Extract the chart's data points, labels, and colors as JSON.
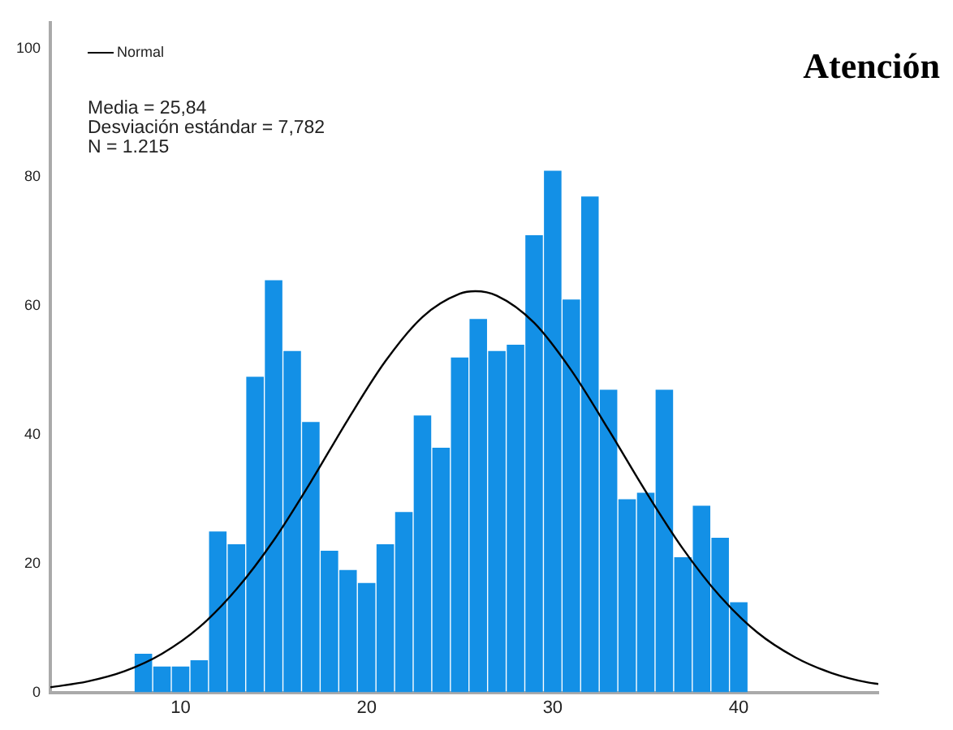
{
  "chart_data": {
    "type": "histogram",
    "title": "Atención",
    "annotations": [
      "Media = 25,84",
      "Desviación estándar = 7,782",
      "N = 1.215"
    ],
    "bins": [
      7.5,
      8.5,
      9.5,
      10.5,
      11.5,
      12.5,
      13.5,
      14.5,
      15.5,
      16.5,
      17.5,
      18.5,
      19.5,
      20.5,
      21.5,
      22.5,
      23.5,
      24.5,
      25.5,
      26.5,
      27.5,
      28.5,
      29.5,
      30.5,
      31.5,
      32.5,
      33.5,
      34.5,
      35.5,
      36.5,
      37.5,
      38.5,
      39.5,
      40.5
    ],
    "values": [
      6,
      4,
      4,
      5,
      25,
      23,
      49,
      64,
      53,
      42,
      22,
      19,
      17,
      23,
      28,
      43,
      38,
      52,
      58,
      53,
      54,
      71,
      81,
      61,
      77,
      47,
      30,
      31,
      47,
      21,
      29,
      24,
      14
    ],
    "color": "#1390e6",
    "series": [
      {
        "type": "line",
        "name": "Normal",
        "color": "#000000",
        "x": [
          3,
          5,
          7,
          9,
          11,
          13,
          15,
          17,
          19,
          21,
          23,
          25,
          25.84,
          27,
          29,
          31,
          33,
          35,
          37,
          39,
          41,
          43,
          45,
          47,
          47.5
        ],
        "values": [
          0.8,
          1.7,
          3.3,
          6.0,
          10.1,
          16.0,
          23.6,
          32.7,
          42.4,
          51.4,
          58.3,
          61.9,
          62.3,
          61.6,
          57.4,
          50.0,
          40.8,
          31.2,
          22.3,
          14.9,
          9.3,
          5.5,
          3.0,
          1.5,
          1.3
        ]
      }
    ],
    "xlim": [
      3,
      47.5
    ],
    "xticks": [
      10,
      20,
      30,
      40
    ],
    "ylim": [
      0,
      104
    ],
    "yticks": [
      0,
      20,
      40,
      60,
      80,
      100
    ],
    "grid": false,
    "legend": "top left",
    "marker": "none",
    "line_style": "solid"
  }
}
